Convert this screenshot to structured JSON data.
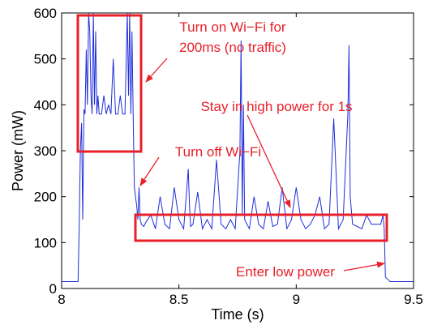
{
  "chart_data": {
    "type": "line",
    "title": "",
    "xlabel": "Time (s)",
    "ylabel": "Power (mW)",
    "xlim": [
      8,
      9.5
    ],
    "ylim": [
      0,
      600
    ],
    "x_ticks": [
      "8",
      "8.5",
      "9",
      "9.5"
    ],
    "y_ticks": [
      "0",
      "100",
      "200",
      "300",
      "400",
      "500",
      "600"
    ],
    "x_tick_values": [
      8,
      8.5,
      9,
      9.5
    ],
    "y_tick_values": [
      0,
      100,
      200,
      300,
      400,
      500,
      600
    ],
    "grid": false,
    "colors": {
      "series": "#1f2fd8",
      "annotation": "#e8202a"
    },
    "series": [
      {
        "x": [
          8.0,
          8.06,
          8.07,
          8.075,
          8.08,
          8.085,
          8.09,
          8.095,
          8.1,
          8.105,
          8.11,
          8.115,
          8.12,
          8.125,
          8.13,
          8.135,
          8.14,
          8.145,
          8.15,
          8.155,
          8.16,
          8.17,
          8.18,
          8.19,
          8.2,
          8.21,
          8.22,
          8.23,
          8.24,
          8.25,
          8.26,
          8.27,
          8.28,
          8.285,
          8.29,
          8.295,
          8.3,
          8.305,
          8.31,
          8.315,
          8.32,
          8.325,
          8.33,
          8.335,
          8.34,
          8.35,
          8.36,
          8.38,
          8.4,
          8.42,
          8.44,
          8.46,
          8.48,
          8.5,
          8.52,
          8.54,
          8.545,
          8.55,
          8.56,
          8.58,
          8.6,
          8.62,
          8.64,
          8.66,
          8.68,
          8.7,
          8.72,
          8.74,
          8.76,
          8.765,
          8.77,
          8.775,
          8.78,
          8.8,
          8.82,
          8.84,
          8.86,
          8.88,
          8.9,
          8.92,
          8.94,
          8.96,
          8.98,
          9.0,
          9.02,
          9.04,
          9.06,
          9.08,
          9.1,
          9.12,
          9.14,
          9.16,
          9.18,
          9.2,
          9.22,
          9.225,
          9.23,
          9.24,
          9.26,
          9.28,
          9.3,
          9.32,
          9.34,
          9.36,
          9.37,
          9.375,
          9.38,
          9.4,
          9.45,
          9.5
        ],
        "values": [
          15,
          15,
          15,
          140,
          300,
          360,
          150,
          390,
          380,
          520,
          400,
          600,
          560,
          420,
          380,
          600,
          400,
          560,
          380,
          420,
          380,
          380,
          420,
          380,
          400,
          380,
          500,
          380,
          380,
          420,
          380,
          380,
          600,
          420,
          600,
          380,
          560,
          380,
          220,
          200,
          180,
          150,
          220,
          150,
          140,
          135,
          145,
          160,
          130,
          200,
          140,
          130,
          220,
          150,
          130,
          260,
          180,
          135,
          140,
          210,
          130,
          150,
          130,
          280,
          140,
          130,
          150,
          130,
          300,
          540,
          160,
          400,
          150,
          130,
          200,
          140,
          130,
          190,
          135,
          140,
          220,
          130,
          150,
          220,
          150,
          130,
          140,
          160,
          200,
          130,
          140,
          370,
          130,
          150,
          380,
          530,
          200,
          140,
          135,
          130,
          160,
          140,
          140,
          140,
          160,
          130,
          25,
          15,
          15,
          15
        ]
      }
    ],
    "annotations": [
      {
        "text": "Turn on Wi−Fi for",
        "text2": "200ms (no traffic)"
      },
      {
        "text": "Stay in high power for 1s"
      },
      {
        "text": "Turn off Wi−Fi"
      },
      {
        "text": "Enter low power"
      }
    ]
  }
}
